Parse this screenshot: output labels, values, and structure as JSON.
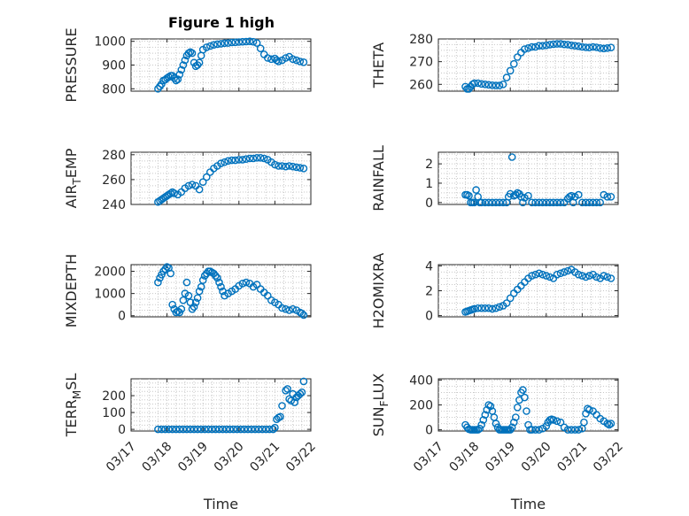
{
  "figure_title": "Figure 1 high",
  "x_axis": {
    "label": "Time",
    "ticks": [
      "03/17",
      "03/18",
      "03/19",
      "03/20",
      "03/21",
      "03/22"
    ],
    "range": [
      "03/17",
      "03/22"
    ]
  },
  "marker_color": "#0072BD",
  "chart_data": [
    {
      "type": "scatter",
      "ylabel": "PRESSURE",
      "ylabel_sub": "",
      "ylim": [
        790,
        1010
      ],
      "yticks": [
        800,
        900,
        1000
      ],
      "x": [
        0.75,
        0.8,
        0.85,
        0.9,
        0.95,
        1.0,
        1.05,
        1.1,
        1.15,
        1.2,
        1.25,
        1.3,
        1.35,
        1.4,
        1.45,
        1.5,
        1.55,
        1.6,
        1.65,
        1.7,
        1.75,
        1.8,
        1.85,
        1.9,
        1.95,
        2.0,
        2.1,
        2.2,
        2.3,
        2.4,
        2.5,
        2.6,
        2.7,
        2.8,
        2.9,
        3.0,
        3.1,
        3.2,
        3.3,
        3.4,
        3.5,
        3.6,
        3.7,
        3.8,
        3.9,
        4.0,
        4.05,
        4.1,
        4.2,
        4.3,
        4.4,
        4.5,
        4.6,
        4.7,
        4.8
      ],
      "y": [
        800,
        810,
        820,
        835,
        838,
        845,
        850,
        855,
        855,
        845,
        835,
        840,
        860,
        880,
        900,
        920,
        940,
        950,
        955,
        950,
        910,
        895,
        900,
        910,
        940,
        965,
        975,
        980,
        985,
        988,
        990,
        992,
        993,
        995,
        996,
        997,
        998,
        999,
        1000,
        998,
        993,
        970,
        945,
        930,
        925,
        928,
        920,
        915,
        920,
        930,
        935,
        925,
        920,
        915,
        912
      ]
    },
    {
      "type": "scatter",
      "ylabel": "THETA",
      "ylabel_sub": "",
      "ylim": [
        257,
        280
      ],
      "yticks": [
        260,
        270,
        280
      ],
      "x": [
        0.75,
        0.8,
        0.85,
        0.9,
        0.95,
        1.0,
        1.1,
        1.2,
        1.3,
        1.4,
        1.5,
        1.6,
        1.7,
        1.8,
        1.9,
        2.0,
        2.1,
        2.2,
        2.3,
        2.4,
        2.5,
        2.6,
        2.7,
        2.8,
        2.9,
        3.0,
        3.1,
        3.2,
        3.3,
        3.4,
        3.5,
        3.6,
        3.7,
        3.8,
        3.9,
        4.0,
        4.1,
        4.2,
        4.3,
        4.4,
        4.5,
        4.6,
        4.7,
        4.8
      ],
      "y": [
        259,
        258,
        258,
        259,
        260,
        260.5,
        260.5,
        260.2,
        260,
        259.8,
        259.6,
        259.5,
        259.5,
        260,
        263,
        266,
        269,
        272,
        274,
        275.5,
        276,
        276.5,
        276.5,
        277,
        277,
        277.2,
        277.5,
        277.7,
        277.8,
        277.8,
        277.6,
        277.5,
        277.2,
        277,
        276.8,
        276.5,
        276.3,
        276.2,
        276.5,
        276.3,
        276,
        275.8,
        276,
        276.2
      ]
    },
    {
      "type": "scatter",
      "ylabel": "AIR",
      "ylabel_sub": "T",
      "ylabel_after": "EMP",
      "ylim": [
        240,
        282
      ],
      "yticks": [
        240,
        260,
        280
      ],
      "x": [
        0.75,
        0.8,
        0.85,
        0.9,
        0.95,
        1.0,
        1.05,
        1.1,
        1.15,
        1.2,
        1.3,
        1.4,
        1.5,
        1.6,
        1.7,
        1.8,
        1.9,
        2.0,
        2.1,
        2.2,
        2.3,
        2.4,
        2.5,
        2.6,
        2.7,
        2.8,
        2.9,
        3.0,
        3.1,
        3.2,
        3.3,
        3.4,
        3.5,
        3.6,
        3.7,
        3.8,
        3.9,
        4.0,
        4.1,
        4.2,
        4.3,
        4.4,
        4.5,
        4.6,
        4.7,
        4.8
      ],
      "y": [
        242,
        243,
        244,
        245,
        246,
        247,
        248,
        249,
        250,
        249,
        248,
        250,
        253,
        255,
        256,
        255,
        252,
        258,
        262,
        266,
        269,
        271,
        273,
        274,
        275,
        275.5,
        275.5,
        276,
        276,
        276.5,
        277,
        277,
        277.5,
        277.5,
        277,
        276,
        274,
        272,
        271,
        271,
        270.5,
        271,
        270.5,
        270,
        269.5,
        269
      ]
    },
    {
      "type": "scatter",
      "ylabel": "RAINFALL",
      "ylabel_sub": "",
      "ylim": [
        -0.1,
        2.6
      ],
      "yticks": [
        0,
        1,
        2
      ],
      "x": [
        0.75,
        0.8,
        0.85,
        0.9,
        0.95,
        1.0,
        1.05,
        1.1,
        1.15,
        1.2,
        1.3,
        1.4,
        1.5,
        1.6,
        1.7,
        1.8,
        1.9,
        1.95,
        2.0,
        2.05,
        2.1,
        2.15,
        2.2,
        2.25,
        2.3,
        2.35,
        2.4,
        2.5,
        2.6,
        2.7,
        2.8,
        2.9,
        3.0,
        3.1,
        3.2,
        3.3,
        3.4,
        3.5,
        3.6,
        3.65,
        3.7,
        3.75,
        3.8,
        3.9,
        4.0,
        4.1,
        4.2,
        4.3,
        4.4,
        4.5,
        4.6,
        4.7,
        4.8
      ],
      "y": [
        0.4,
        0.4,
        0.35,
        0,
        0,
        0,
        0.65,
        0.3,
        0,
        0,
        0,
        0,
        0,
        0,
        0,
        0,
        0,
        0.3,
        0.45,
        2.35,
        0.35,
        0.4,
        0.5,
        0.45,
        0.3,
        0,
        0.25,
        0.35,
        0,
        0,
        0,
        0,
        0,
        0,
        0,
        0,
        0,
        0,
        0.2,
        0.3,
        0.35,
        0,
        0.3,
        0.4,
        0,
        0,
        0,
        0,
        0,
        0,
        0.4,
        0.3,
        0.3
      ]
    },
    {
      "type": "scatter",
      "ylabel": "MIXDEPTH",
      "ylabel_sub": "",
      "ylim": [
        -50,
        2300
      ],
      "yticks": [
        0,
        1000,
        2000
      ],
      "x": [
        0.75,
        0.8,
        0.85,
        0.9,
        0.95,
        1.0,
        1.05,
        1.1,
        1.15,
        1.2,
        1.25,
        1.3,
        1.35,
        1.4,
        1.45,
        1.5,
        1.55,
        1.6,
        1.65,
        1.7,
        1.75,
        1.8,
        1.85,
        1.9,
        1.95,
        2.0,
        2.05,
        2.1,
        2.15,
        2.2,
        2.25,
        2.3,
        2.35,
        2.4,
        2.45,
        2.5,
        2.55,
        2.6,
        2.7,
        2.8,
        2.9,
        3.0,
        3.1,
        3.2,
        3.3,
        3.4,
        3.5,
        3.6,
        3.7,
        3.8,
        3.9,
        4.0,
        4.1,
        4.2,
        4.3,
        4.4,
        4.5,
        4.6,
        4.7,
        4.75,
        4.8
      ],
      "y": [
        1500,
        1700,
        1850,
        2000,
        2100,
        2200,
        2150,
        1900,
        500,
        300,
        150,
        200,
        150,
        300,
        700,
        1000,
        1500,
        900,
        600,
        300,
        400,
        600,
        800,
        1100,
        1300,
        1600,
        1800,
        1900,
        2000,
        2000,
        1950,
        1900,
        1800,
        1700,
        1500,
        1300,
        1100,
        900,
        1000,
        1100,
        1200,
        1350,
        1450,
        1500,
        1450,
        1300,
        1400,
        1200,
        1050,
        900,
        700,
        600,
        500,
        350,
        300,
        250,
        300,
        250,
        150,
        100,
        30
      ]
    },
    {
      "type": "scatter",
      "ylabel": "H2OMIXRA",
      "ylabel_sub": "",
      "ylim": [
        -0.1,
        4.1
      ],
      "yticks": [
        0,
        2,
        4
      ],
      "x": [
        0.75,
        0.8,
        0.85,
        0.9,
        0.95,
        1.0,
        1.1,
        1.2,
        1.3,
        1.4,
        1.5,
        1.6,
        1.7,
        1.8,
        1.9,
        2.0,
        2.1,
        2.2,
        2.3,
        2.4,
        2.5,
        2.6,
        2.7,
        2.8,
        2.9,
        3.0,
        3.1,
        3.2,
        3.3,
        3.4,
        3.5,
        3.6,
        3.7,
        3.8,
        3.9,
        4.0,
        4.1,
        4.2,
        4.3,
        4.4,
        4.5,
        4.6,
        4.7,
        4.8
      ],
      "y": [
        0.3,
        0.35,
        0.4,
        0.45,
        0.5,
        0.55,
        0.6,
        0.6,
        0.6,
        0.6,
        0.55,
        0.6,
        0.7,
        0.8,
        1.0,
        1.4,
        1.8,
        2.1,
        2.4,
        2.7,
        3.0,
        3.2,
        3.3,
        3.4,
        3.3,
        3.2,
        3.1,
        3.0,
        3.3,
        3.4,
        3.5,
        3.6,
        3.7,
        3.5,
        3.3,
        3.2,
        3.1,
        3.2,
        3.3,
        3.1,
        3.0,
        3.2,
        3.1,
        3.0
      ]
    },
    {
      "type": "scatter",
      "ylabel": "TERR",
      "ylabel_sub": "M",
      "ylabel_after": "SL",
      "ylim": [
        -10,
        300
      ],
      "yticks": [
        0,
        100,
        200
      ],
      "x": [
        0.75,
        0.85,
        0.95,
        1.05,
        1.15,
        1.25,
        1.35,
        1.45,
        1.55,
        1.65,
        1.75,
        1.85,
        1.95,
        2.05,
        2.15,
        2.25,
        2.35,
        2.45,
        2.55,
        2.65,
        2.75,
        2.85,
        2.95,
        3.05,
        3.15,
        3.25,
        3.35,
        3.45,
        3.55,
        3.65,
        3.75,
        3.85,
        3.95,
        4.0,
        4.05,
        4.1,
        4.15,
        4.2,
        4.3,
        4.35,
        4.4,
        4.45,
        4.5,
        4.55,
        4.6,
        4.65,
        4.7,
        4.75,
        4.8
      ],
      "y": [
        0,
        0,
        0,
        0,
        0,
        0,
        0,
        0,
        0,
        0,
        0,
        0,
        0,
        0,
        0,
        0,
        0,
        0,
        0,
        0,
        0,
        0,
        0,
        0,
        0,
        0,
        0,
        0,
        0,
        0,
        0,
        0,
        0,
        10,
        60,
        70,
        75,
        140,
        230,
        240,
        180,
        170,
        210,
        160,
        190,
        200,
        210,
        220,
        285
      ]
    },
    {
      "type": "scatter",
      "ylabel": "SUN",
      "ylabel_sub": "F",
      "ylabel_after": "LUX",
      "ylim": [
        -10,
        410
      ],
      "yticks": [
        0,
        200,
        400
      ],
      "x": [
        0.75,
        0.8,
        0.85,
        0.9,
        0.95,
        1.0,
        1.05,
        1.1,
        1.15,
        1.2,
        1.25,
        1.3,
        1.35,
        1.4,
        1.45,
        1.5,
        1.55,
        1.6,
        1.65,
        1.7,
        1.75,
        1.8,
        1.85,
        1.9,
        1.95,
        2.0,
        2.05,
        2.1,
        2.15,
        2.2,
        2.25,
        2.3,
        2.35,
        2.4,
        2.45,
        2.5,
        2.55,
        2.6,
        2.7,
        2.8,
        2.9,
        3.0,
        3.05,
        3.1,
        3.15,
        3.2,
        3.3,
        3.4,
        3.5,
        3.6,
        3.7,
        3.8,
        3.9,
        4.0,
        4.05,
        4.1,
        4.15,
        4.2,
        4.3,
        4.4,
        4.5,
        4.6,
        4.7,
        4.75,
        4.8
      ],
      "y": [
        40,
        20,
        5,
        0,
        0,
        0,
        0,
        0,
        10,
        40,
        80,
        120,
        160,
        200,
        190,
        150,
        100,
        50,
        20,
        0,
        0,
        0,
        0,
        0,
        0,
        0,
        20,
        60,
        100,
        180,
        240,
        300,
        320,
        260,
        150,
        40,
        0,
        0,
        0,
        0,
        10,
        30,
        60,
        80,
        85,
        80,
        70,
        60,
        20,
        0,
        0,
        0,
        0,
        10,
        60,
        130,
        170,
        160,
        150,
        120,
        90,
        70,
        50,
        40,
        50
      ]
    }
  ]
}
